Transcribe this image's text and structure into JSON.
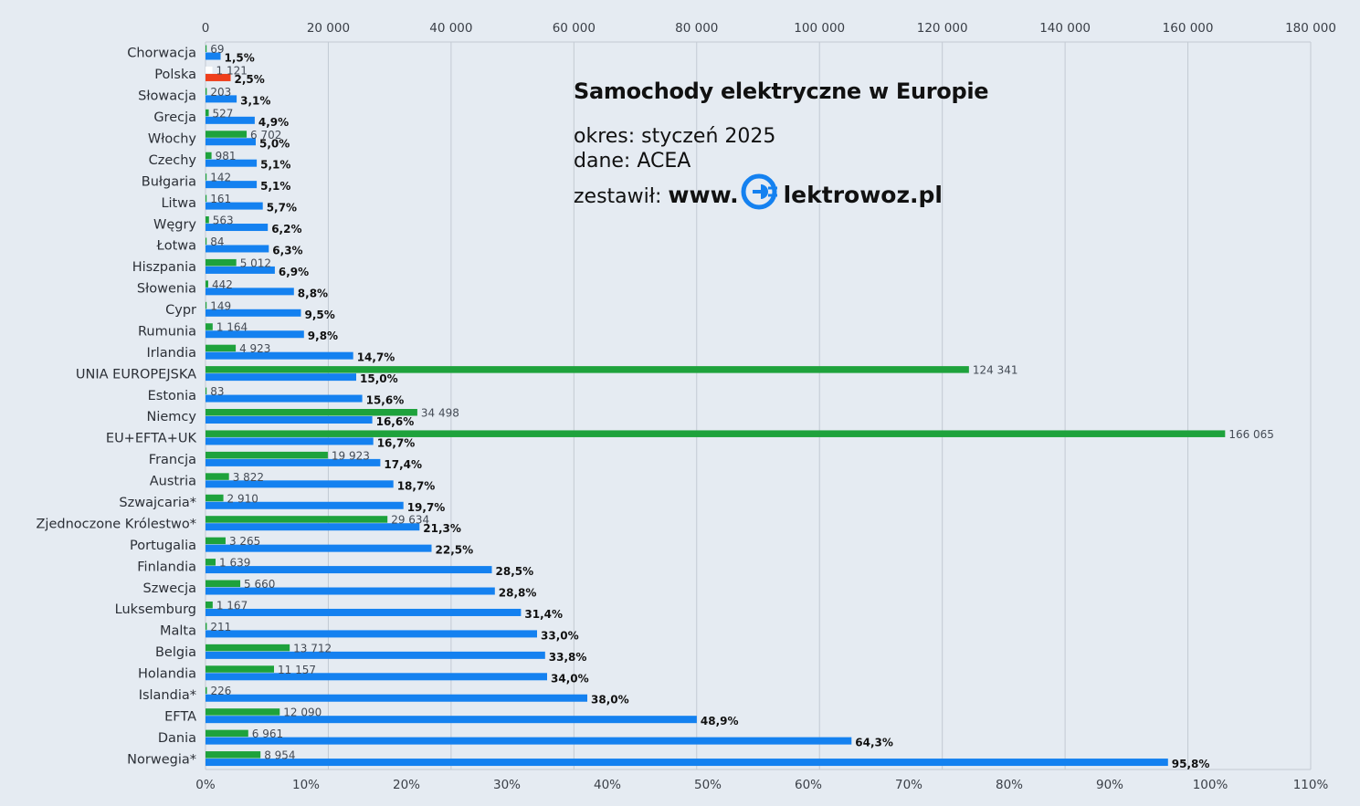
{
  "info": {
    "title": "Samochody elektryczne w Europie",
    "period": "okres: styczeń 2025",
    "source": "dane: ACEA",
    "author_prefix": "zestawił:",
    "site_prefix": "www.",
    "site_suffix": "lektrowoz.pl",
    "logo_icon": "plug-e-icon"
  },
  "chart_data": {
    "type": "bar",
    "orientation": "horizontal",
    "title": "Samochody elektryczne w Europie",
    "categories": [
      "Chorwacja",
      "Polska",
      "Słowacja",
      "Grecja",
      "Włochy",
      "Czechy",
      "Bułgaria",
      "Litwa",
      "Węgry",
      "Łotwa",
      "Hiszpania",
      "Słowenia",
      "Cypr",
      "Rumunia",
      "Irlandia",
      "UNIA EUROPEJSKA",
      "Estonia",
      "Niemcy",
      "EU+EFTA+UK",
      "Francja",
      "Austria",
      "Szwajcaria*",
      "Zjednoczone Królestwo*",
      "Portugalia",
      "Finlandia",
      "Szwecja",
      "Luksemburg",
      "Malta",
      "Belgia",
      "Holandia",
      "Islandia*",
      "EFTA",
      "Dania",
      "Norwegia*"
    ],
    "series": [
      {
        "values": [
          69,
          1121,
          203,
          527,
          6702,
          981,
          142,
          161,
          563,
          84,
          5012,
          442,
          149,
          1164,
          4923,
          124341,
          83,
          34498,
          166065,
          19923,
          3822,
          2910,
          29634,
          3265,
          1639,
          5660,
          1167,
          211,
          13712,
          11157,
          226,
          12090,
          6961,
          8954
        ],
        "labels": [
          "69",
          "1 121",
          "203",
          "527",
          "6 702",
          "981",
          "142",
          "161",
          "563",
          "84",
          "5 012",
          "442",
          "149",
          "1 164",
          "4 923",
          "124 341",
          "83",
          "34 498",
          "166 065",
          "19 923",
          "3 822",
          "2 910",
          "29 634",
          "3 265",
          "1 639",
          "5 660",
          "1 167",
          "211",
          "13 712",
          "11 157",
          "226",
          "12 090",
          "6 961",
          "8 954"
        ],
        "axis": "top",
        "color": "#1ea23c"
      },
      {
        "values": [
          1.5,
          2.5,
          3.1,
          4.9,
          5.0,
          5.1,
          5.1,
          5.7,
          6.2,
          6.3,
          6.9,
          8.8,
          9.5,
          9.8,
          14.7,
          15.0,
          15.6,
          16.6,
          16.7,
          17.4,
          18.7,
          19.7,
          21.3,
          22.5,
          28.5,
          28.8,
          31.4,
          33.0,
          33.8,
          34.0,
          38.0,
          48.9,
          64.3,
          95.8
        ],
        "labels": [
          "1,5%",
          "2,5%",
          "3,1%",
          "4,9%",
          "5,0%",
          "5,1%",
          "5,1%",
          "5,7%",
          "6,2%",
          "6,3%",
          "6,9%",
          "8,8%",
          "9,5%",
          "9,8%",
          "14,7%",
          "15,0%",
          "15,6%",
          "16,6%",
          "16,7%",
          "17,4%",
          "18,7%",
          "19,7%",
          "21,3%",
          "22,5%",
          "28,5%",
          "28,8%",
          "31,4%",
          "33,0%",
          "33,8%",
          "34,0%",
          "38,0%",
          "48,9%",
          "64,3%",
          "95,8%"
        ],
        "axis": "bottom",
        "color": "#1481f0"
      }
    ],
    "highlight": {
      "category": "Polska",
      "count_color": "#ffffff",
      "percent_color": "#ef3f1c"
    },
    "top_axis": {
      "min": 0,
      "max": 180000,
      "ticks": [
        "0",
        "20 000",
        "40 000",
        "60 000",
        "80 000",
        "100 000",
        "120 000",
        "140 000",
        "160 000",
        "180 000"
      ]
    },
    "bottom_axis": {
      "min": 0,
      "max": 110,
      "ticks": [
        "0%",
        "10%",
        "20%",
        "30%",
        "40%",
        "50%",
        "60%",
        "70%",
        "80%",
        "90%",
        "100%",
        "110%"
      ]
    },
    "grid": true
  }
}
